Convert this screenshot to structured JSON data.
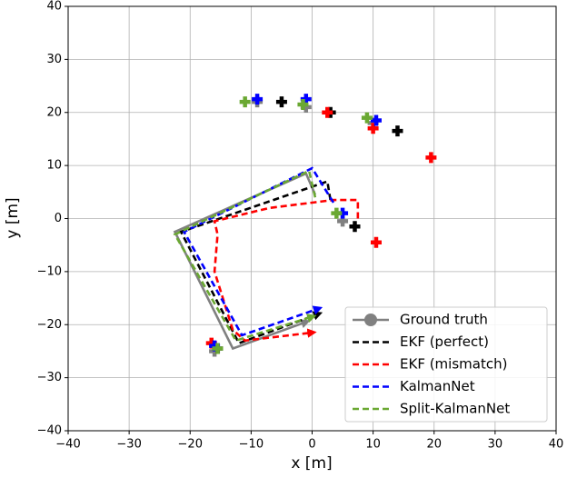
{
  "chart_data": {
    "type": "line",
    "xlabel": "x [m]",
    "ylabel": "y [m]",
    "xlim": [
      -40,
      40
    ],
    "ylim": [
      -40,
      40
    ],
    "xticks": [
      {
        "value": -40,
        "label": "−40"
      },
      {
        "value": -30,
        "label": "−30"
      },
      {
        "value": -20,
        "label": "−20"
      },
      {
        "value": -10,
        "label": "−10"
      },
      0,
      10,
      20,
      30,
      40
    ],
    "yticks": [
      {
        "value": -40,
        "label": "−40"
      },
      {
        "value": -30,
        "label": "−30"
      },
      {
        "value": -20,
        "label": "−20"
      },
      {
        "value": -10,
        "label": "−10"
      },
      0,
      10,
      20,
      30,
      40
    ],
    "grid": true,
    "legend": "lower right",
    "series": [
      {
        "name": "Ground truth",
        "color": "#808080",
        "dash": "solid",
        "marker": "circle",
        "x": [
          0.5,
          -1,
          -22.5,
          -13,
          -1
        ],
        "y": [
          4.5,
          8.5,
          -2.5,
          -24.5,
          -19.5
        ],
        "landmarks": {
          "x": [
            -9,
            -1,
            10,
            5,
            -16
          ],
          "y": [
            22,
            21,
            18,
            -0.5,
            -25
          ]
        }
      },
      {
        "name": "EKF (perfect)",
        "color": "#000000",
        "dash": "dashed",
        "x": [
          3,
          2.5,
          -21.5,
          -12,
          1
        ],
        "y": [
          3.5,
          7,
          -2.5,
          -23.5,
          -18
        ],
        "landmarks": {
          "x": [
            -5,
            3,
            14,
            7,
            -15.5
          ],
          "y": [
            22,
            20,
            16.5,
            -1.5,
            -24.5
          ]
        }
      },
      {
        "name": "EKF (mismatch)",
        "color": "#ff0000",
        "dash": "dashed",
        "x": [
          7.5,
          7.5,
          3.5,
          -7,
          -16,
          -15.5,
          -16,
          -13,
          -11,
          0
        ],
        "y": [
          0,
          3.5,
          3.5,
          2,
          -0.5,
          -3,
          -10,
          -21,
          -23,
          -21.5
        ],
        "landmarks": {
          "x": [
            2.5,
            10,
            19.5,
            10.5,
            -16.5
          ],
          "y": [
            20,
            17,
            11.5,
            -4.5,
            -23.5
          ]
        }
      },
      {
        "name": "KalmanNet",
        "color": "#0000ff",
        "dash": "dashed",
        "x": [
          3.5,
          0,
          -21,
          -11.5,
          1
        ],
        "y": [
          3,
          9.5,
          -2.5,
          -22,
          -17
        ],
        "landmarks": {
          "x": [
            -9,
            -1,
            10.5,
            5,
            -16
          ],
          "y": [
            22.5,
            22.5,
            18.5,
            1,
            -24
          ]
        }
      },
      {
        "name": "Split-KalmanNet",
        "color": "#6aa832",
        "dash": "dashed",
        "x": [
          0.5,
          -0.5,
          -22.5,
          -12.5,
          0
        ],
        "y": [
          4,
          9,
          -3,
          -23,
          -18.5
        ],
        "landmarks": {
          "x": [
            -11,
            -1.5,
            9,
            4,
            -15.5
          ],
          "y": [
            22,
            21.5,
            19,
            1,
            -24.5
          ]
        }
      }
    ]
  }
}
